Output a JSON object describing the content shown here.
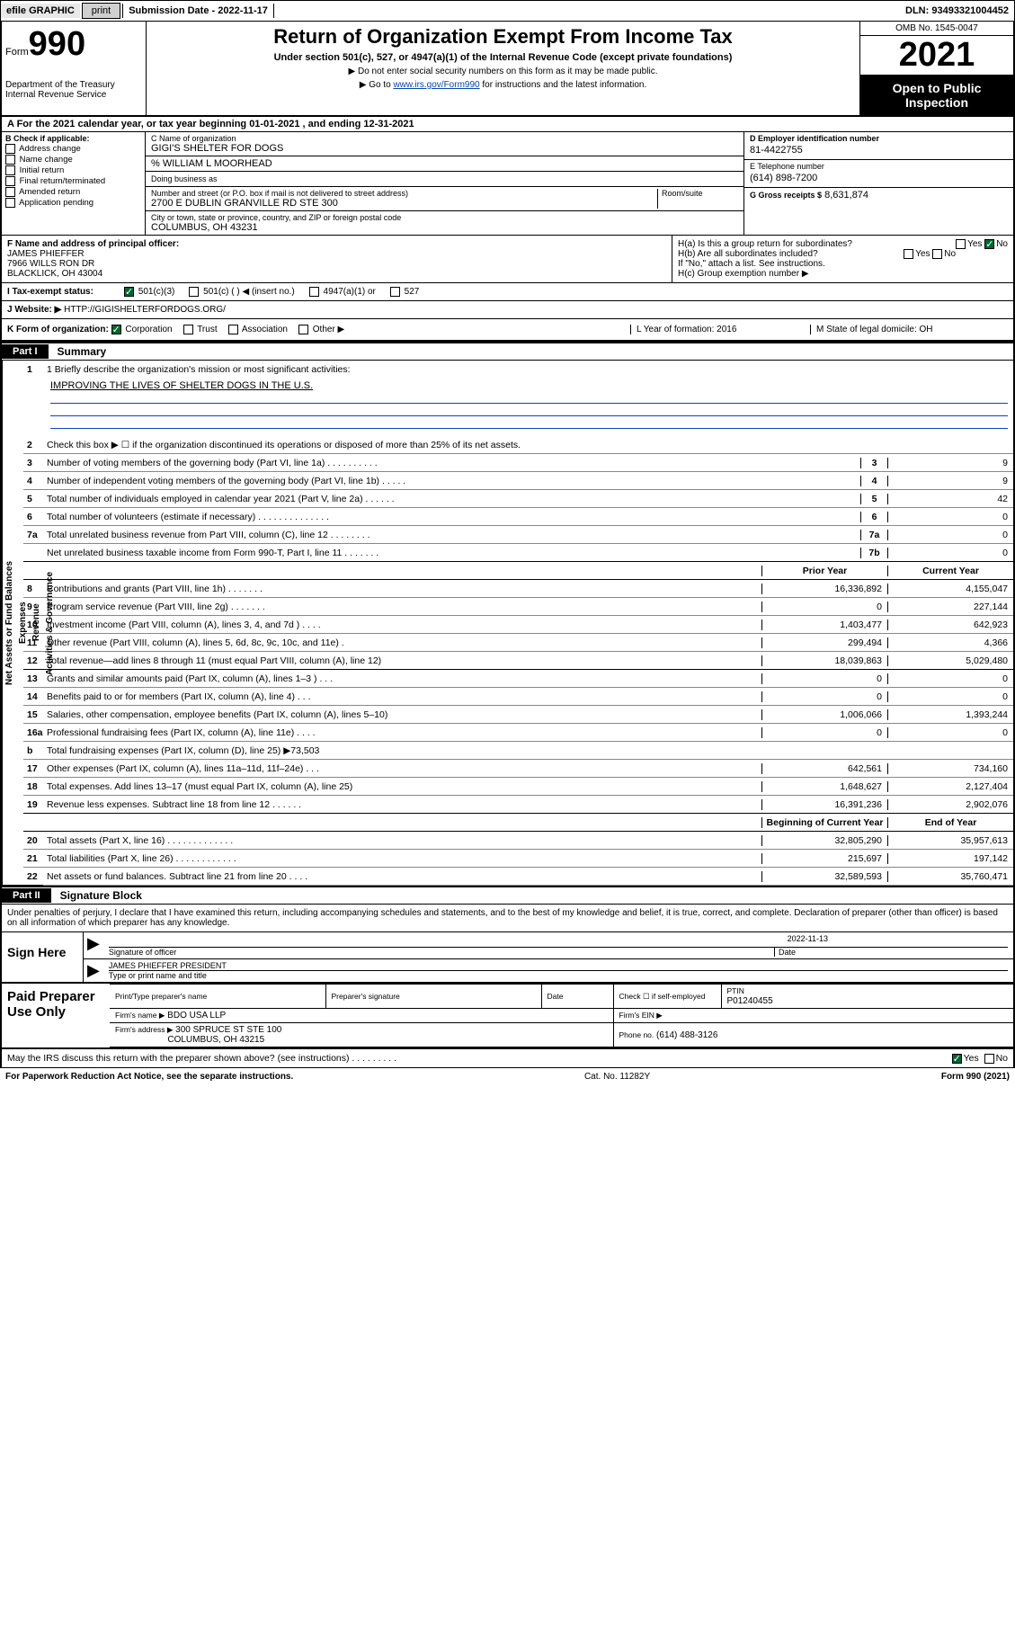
{
  "topbar": {
    "efile_label": "efile GRAPHIC",
    "print_label": "print",
    "submission_label": "Submission Date - 2022-11-17",
    "dln": "DLN: 93493321004452"
  },
  "header": {
    "form_label": "Form",
    "form_number": "990",
    "dept": "Department of the Treasury\nInternal Revenue Service",
    "title": "Return of Organization Exempt From Income Tax",
    "subtitle": "Under section 501(c), 527, or 4947(a)(1) of the Internal Revenue Code (except private foundations)",
    "note1": "▶ Do not enter social security numbers on this form as it may be made public.",
    "note2_prefix": "▶ Go to ",
    "note2_link": "www.irs.gov/Form990",
    "note2_suffix": " for instructions and the latest information.",
    "omb": "OMB No. 1545-0047",
    "year": "2021",
    "open_to_public": "Open to Public Inspection"
  },
  "rowA": "A For the 2021 calendar year, or tax year beginning 01-01-2021   , and ending 12-31-2021",
  "sectionB": {
    "label": "B Check if applicable:",
    "items": [
      "Address change",
      "Name change",
      "Initial return",
      "Final return/terminated",
      "Amended return",
      "Application pending"
    ]
  },
  "sectionC": {
    "name_label": "C Name of organization",
    "name": "GIGI'S SHELTER FOR DOGS",
    "care_of": "% WILLIAM L MOORHEAD",
    "dba_label": "Doing business as",
    "addr_label": "Number and street (or P.O. box if mail is not delivered to street address)",
    "room_label": "Room/suite",
    "addr": "2700 E DUBLIN GRANVILLE RD STE 300",
    "city_label": "City or town, state or province, country, and ZIP or foreign postal code",
    "city": "COLUMBUS, OH  43231"
  },
  "sectionD": {
    "label": "D Employer identification number",
    "value": "81-4422755"
  },
  "sectionE": {
    "label": "E Telephone number",
    "value": "(614) 898-7200"
  },
  "sectionG": {
    "label": "G Gross receipts $",
    "value": "8,631,874"
  },
  "sectionF": {
    "label": "F Name and address of principal officer:",
    "name": "JAMES PHIEFFER",
    "addr1": "7966 WILLS RON DR",
    "addr2": "BLACKLICK, OH  43004"
  },
  "sectionH": {
    "a_label": "H(a)  Is this a group return for subordinates?",
    "a_yes": "Yes",
    "a_no": "No",
    "b_label": "H(b)  Are all subordinates included?",
    "b_yes": "Yes",
    "b_no": "No",
    "b_note": "If \"No,\" attach a list. See instructions.",
    "c_label": "H(c)  Group exemption number ▶"
  },
  "sectionI": {
    "label": "I   Tax-exempt status:",
    "opts": [
      "501(c)(3)",
      "501(c) (   ) ◀ (insert no.)",
      "4947(a)(1) or",
      "527"
    ]
  },
  "sectionJ": {
    "label": "J   Website: ▶",
    "value": "HTTP://GIGISHELTERFORDOGS.ORG/"
  },
  "sectionK": {
    "label": "K Form of organization:",
    "opts": [
      "Corporation",
      "Trust",
      "Association",
      "Other ▶"
    ]
  },
  "sectionL": {
    "label": "L Year of formation: 2016"
  },
  "sectionM": {
    "label": "M State of legal domicile: OH"
  },
  "partI": {
    "tag": "Part I",
    "title": "Summary"
  },
  "sidebar_groups": [
    "Activities & Governance",
    "Revenue",
    "Expenses",
    "Net Assets or Fund Balances"
  ],
  "mission": {
    "label": "1   Briefly describe the organization's mission or most significant activities:",
    "text": "IMPROVING THE LIVES OF SHELTER DOGS IN THE U.S."
  },
  "gov_lines": [
    {
      "n": "2",
      "t": "Check this box ▶ ☐  if the organization discontinued its operations or disposed of more than 25% of its net assets.",
      "mode": "text"
    },
    {
      "n": "3",
      "t": "Number of voting members of the governing body (Part VI, line 1a)  .   .   .   .   .   .   .   .   .   .",
      "box": "3",
      "v": "9"
    },
    {
      "n": "4",
      "t": "Number of independent voting members of the governing body (Part VI, line 1b)   .   .   .   .   .",
      "box": "4",
      "v": "9"
    },
    {
      "n": "5",
      "t": "Total number of individuals employed in calendar year 2021 (Part V, line 2a)   .   .   .   .   .   .",
      "box": "5",
      "v": "42"
    },
    {
      "n": "6",
      "t": "Total number of volunteers (estimate if necessary)   .   .   .   .   .   .   .   .   .   .   .   .   .   .",
      "box": "6",
      "v": "0"
    },
    {
      "n": "7a",
      "t": "Total unrelated business revenue from Part VIII, column (C), line 12   .   .   .   .   .   .   .   .",
      "box": "7a",
      "v": "0"
    },
    {
      "n": "",
      "t": "Net unrelated business taxable income from Form 990-T, Part I, line 11   .   .   .   .   .   .   .",
      "box": "7b",
      "v": "0"
    }
  ],
  "col_headers": {
    "prior": "Prior Year",
    "current": "Current Year",
    "bcy": "Beginning of Current Year",
    "eoy": "End of Year"
  },
  "rev_lines": [
    {
      "n": "8",
      "t": "Contributions and grants (Part VIII, line 1h)   .   .   .   .   .   .   .",
      "p": "16,336,892",
      "c": "4,155,047"
    },
    {
      "n": "9",
      "t": "Program service revenue (Part VIII, line 2g)   .   .   .   .   .   .   .",
      "p": "0",
      "c": "227,144"
    },
    {
      "n": "10",
      "t": "Investment income (Part VIII, column (A), lines 3, 4, and 7d )   .   .   .   .",
      "p": "1,403,477",
      "c": "642,923"
    },
    {
      "n": "11",
      "t": "Other revenue (Part VIII, column (A), lines 5, 6d, 8c, 9c, 10c, and 11e)   .",
      "p": "299,494",
      "c": "4,366"
    },
    {
      "n": "12",
      "t": "Total revenue—add lines 8 through 11 (must equal Part VIII, column (A), line 12)",
      "p": "18,039,863",
      "c": "5,029,480"
    }
  ],
  "exp_lines": [
    {
      "n": "13",
      "t": "Grants and similar amounts paid (Part IX, column (A), lines 1–3 )   .   .   .",
      "p": "0",
      "c": "0"
    },
    {
      "n": "14",
      "t": "Benefits paid to or for members (Part IX, column (A), line 4)   .   .   .",
      "p": "0",
      "c": "0"
    },
    {
      "n": "15",
      "t": "Salaries, other compensation, employee benefits (Part IX, column (A), lines 5–10)",
      "p": "1,006,066",
      "c": "1,393,244"
    },
    {
      "n": "16a",
      "t": "Professional fundraising fees (Part IX, column (A), line 11e)   .   .   .   .",
      "p": "0",
      "c": "0"
    },
    {
      "n": "b",
      "t": "Total fundraising expenses (Part IX, column (D), line 25) ▶73,503",
      "shade": true
    },
    {
      "n": "17",
      "t": "Other expenses (Part IX, column (A), lines 11a–11d, 11f–24e)   .   .   .",
      "p": "642,561",
      "c": "734,160"
    },
    {
      "n": "18",
      "t": "Total expenses. Add lines 13–17 (must equal Part IX, column (A), line 25)",
      "p": "1,648,627",
      "c": "2,127,404"
    },
    {
      "n": "19",
      "t": "Revenue less expenses. Subtract line 18 from line 12   .   .   .   .   .   .",
      "p": "16,391,236",
      "c": "2,902,076"
    }
  ],
  "na_lines": [
    {
      "n": "20",
      "t": "Total assets (Part X, line 16)   .   .   .   .   .   .   .   .   .   .   .   .   .",
      "p": "32,805,290",
      "c": "35,957,613"
    },
    {
      "n": "21",
      "t": "Total liabilities (Part X, line 26)   .   .   .   .   .   .   .   .   .   .   .   .",
      "p": "215,697",
      "c": "197,142"
    },
    {
      "n": "22",
      "t": "Net assets or fund balances. Subtract line 21 from line 20   .   .   .   .",
      "p": "32,589,593",
      "c": "35,760,471"
    }
  ],
  "partII": {
    "tag": "Part II",
    "title": "Signature Block"
  },
  "sig_note": "Under penalties of perjury, I declare that I have examined this return, including accompanying schedules and statements, and to the best of my knowledge and belief, it is true, correct, and complete. Declaration of preparer (other than officer) is based on all information of which preparer has any knowledge.",
  "sign": {
    "label": "Sign Here",
    "sig_of_officer": "Signature of officer",
    "date_label": "Date",
    "date": "2022-11-13",
    "name_title": "JAMES PHIEFFER  PRESIDENT",
    "name_label": "Type or print name and title"
  },
  "prep": {
    "label": "Paid Preparer Use Only",
    "h1": "Print/Type preparer's name",
    "h2": "Preparer's signature",
    "h3": "Date",
    "h4_check": "Check ☐ if self-employed",
    "h5": "PTIN",
    "ptin": "P01240455",
    "firm_label": "Firm's name    ▶",
    "firm": "BDO USA LLP",
    "ein_label": "Firm's EIN ▶",
    "addr_label": "Firm's address ▶",
    "addr": "300 SPRUCE ST STE 100",
    "addr2": "COLUMBUS, OH  43215",
    "phone_label": "Phone no.",
    "phone": "(614) 488-3126"
  },
  "footer": {
    "discuss": "May the IRS discuss this return with the preparer shown above? (see instructions)   .   .   .   .   .   .   .   .   .",
    "yes": "Yes",
    "no": "No",
    "pra": "For Paperwork Reduction Act Notice, see the separate instructions.",
    "cat": "Cat. No. 11282Y",
    "form": "Form 990 (2021)"
  },
  "colors": {
    "link": "#0645ad",
    "check_green": "#006633",
    "rule_blue": "#1040c0",
    "shade": "#c0c0c0"
  }
}
